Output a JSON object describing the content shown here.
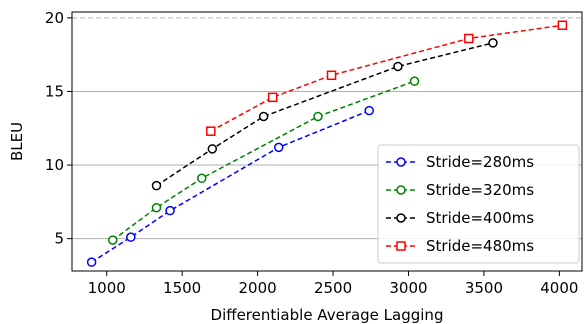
{
  "chart_data": {
    "type": "line",
    "xlabel": "Differentiable Average Lagging",
    "ylabel": "BLEU",
    "xlim": [
      770,
      4150
    ],
    "ylim": [
      2.8,
      20.4
    ],
    "x_ticks": [
      1000,
      1500,
      2000,
      2500,
      3000,
      3500,
      4000
    ],
    "y_ticks": [
      5,
      10,
      15,
      20
    ],
    "grid": "horizontal",
    "reference_line": {
      "y": 20,
      "style": "dashed"
    },
    "legend_position": "lower-right",
    "series": [
      {
        "name": "Stride=280ms",
        "color": "#0000ff",
        "marker": "circle",
        "x": [
          900,
          1160,
          1420,
          2140,
          2740
        ],
        "y": [
          3.4,
          5.1,
          6.9,
          11.2,
          13.7
        ]
      },
      {
        "name": "Stride=320ms",
        "color": "#008000",
        "marker": "circle",
        "x": [
          1040,
          1330,
          1630,
          2400,
          3040
        ],
        "y": [
          4.9,
          7.1,
          9.1,
          13.3,
          15.7
        ]
      },
      {
        "name": "Stride=400ms",
        "color": "#000000",
        "marker": "circle",
        "x": [
          1330,
          1700,
          2040,
          2930,
          3560
        ],
        "y": [
          8.6,
          11.1,
          13.3,
          16.7,
          18.3
        ]
      },
      {
        "name": "Stride=480ms",
        "color": "#ff0000",
        "marker": "square",
        "x": [
          1690,
          2100,
          2490,
          3400,
          4020
        ],
        "y": [
          12.3,
          14.6,
          16.1,
          18.6,
          19.5
        ]
      }
    ]
  }
}
